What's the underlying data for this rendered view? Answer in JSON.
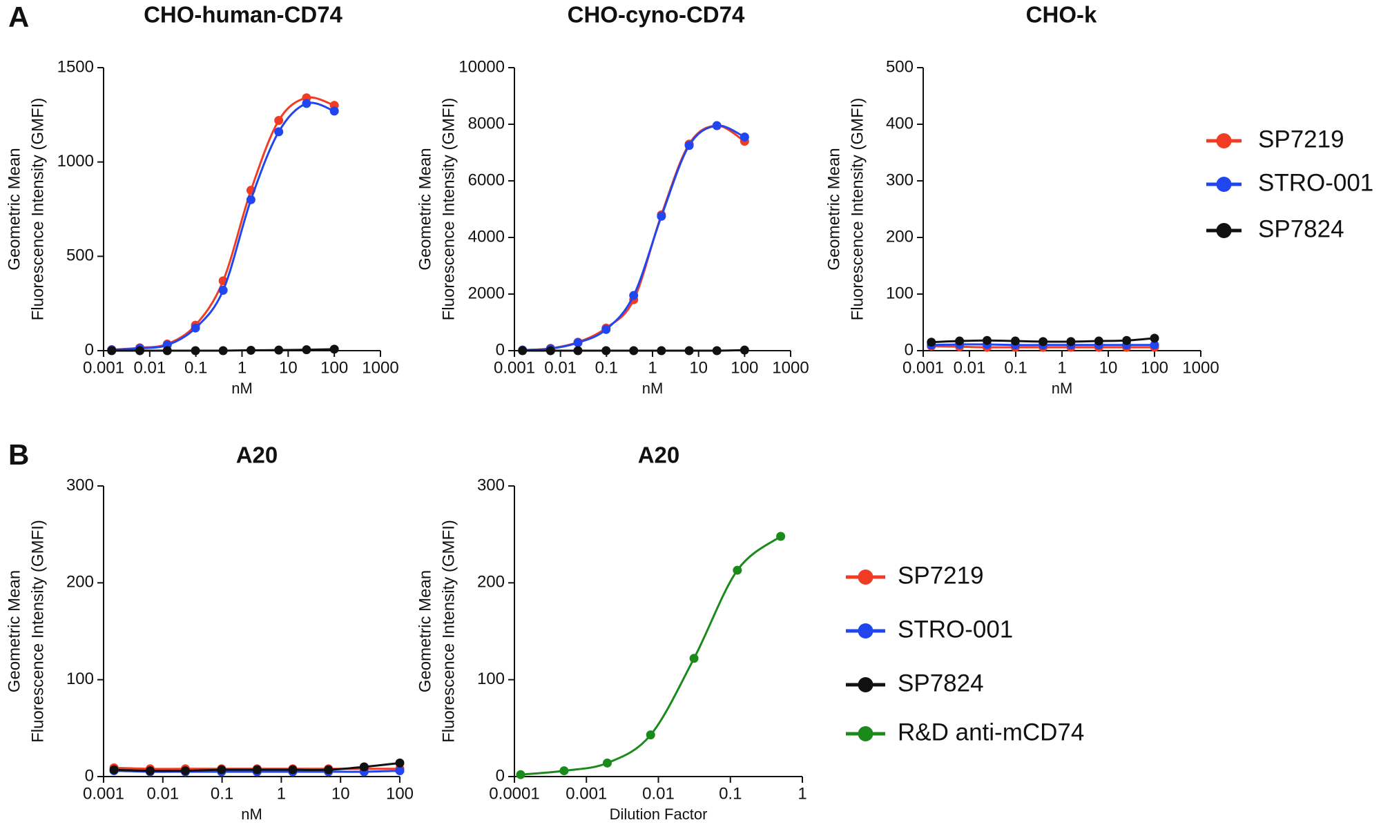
{
  "panel_labels": [
    "A",
    "B"
  ],
  "chart_data": [
    {
      "type": "line",
      "title": "CHO-human-CD74",
      "ylabel": [
        "Geometric Mean",
        "Fluorescence Intensity (GMFI)"
      ],
      "xlabel": "nM",
      "xscale": "log",
      "xlim": [
        0.001,
        1000
      ],
      "xticks": [
        0.001,
        0.01,
        0.1,
        1,
        10,
        100,
        1000
      ],
      "ylim": [
        0,
        1500
      ],
      "yticks": [
        0,
        500,
        1000,
        1500
      ],
      "x": [
        0.0015,
        0.0061,
        0.024,
        0.098,
        0.39,
        1.56,
        6.25,
        25,
        100
      ],
      "series": [
        {
          "name": "SP7219",
          "color": "#f03c24",
          "values": [
            5,
            15,
            35,
            135,
            370,
            850,
            1220,
            1340,
            1300
          ]
        },
        {
          "name": "STRO-001",
          "color": "#2146f0",
          "values": [
            5,
            12,
            30,
            120,
            320,
            800,
            1160,
            1310,
            1270
          ]
        },
        {
          "name": "SP7824",
          "color": "#111111",
          "values": [
            0,
            0,
            0,
            0,
            0,
            2,
            3,
            5,
            8
          ]
        }
      ]
    },
    {
      "type": "line",
      "title": "CHO-cyno-CD74",
      "ylabel": [
        "Geometric Mean",
        "Fluorescence Intensity (GMFI)"
      ],
      "xlabel": "nM",
      "xscale": "log",
      "xlim": [
        0.001,
        1000
      ],
      "xticks": [
        0.001,
        0.01,
        0.1,
        1,
        10,
        100,
        1000
      ],
      "ylim": [
        0,
        10000
      ],
      "yticks": [
        0,
        2000,
        4000,
        6000,
        8000,
        10000
      ],
      "x": [
        0.0015,
        0.0061,
        0.024,
        0.098,
        0.39,
        1.56,
        6.25,
        25,
        100
      ],
      "series": [
        {
          "name": "SP7219",
          "color": "#f03c24",
          "values": [
            20,
            80,
            300,
            800,
            1800,
            4800,
            7300,
            7950,
            7400
          ]
        },
        {
          "name": "STRO-001",
          "color": "#2146f0",
          "values": [
            20,
            70,
            280,
            750,
            1950,
            4750,
            7250,
            7950,
            7550
          ]
        },
        {
          "name": "SP7824",
          "color": "#111111",
          "values": [
            0,
            0,
            0,
            0,
            0,
            0,
            0,
            0,
            20
          ]
        }
      ]
    },
    {
      "type": "line",
      "title": "CHO-k",
      "ylabel": [
        "Geometric Mean",
        "Fluorescence Intensity (GMFI)"
      ],
      "xlabel": "nM",
      "xscale": "log",
      "xlim": [
        0.001,
        1000
      ],
      "xticks": [
        0.001,
        0.01,
        0.1,
        1,
        10,
        100,
        1000
      ],
      "ylim": [
        0,
        500
      ],
      "yticks": [
        0,
        100,
        200,
        300,
        400,
        500
      ],
      "x": [
        0.0015,
        0.0061,
        0.024,
        0.098,
        0.39,
        1.56,
        6.25,
        25,
        100
      ],
      "series": [
        {
          "name": "SP7219",
          "color": "#f03c24",
          "values": [
            8,
            7,
            6,
            6,
            6,
            6,
            6,
            6,
            6
          ]
        },
        {
          "name": "STRO-001",
          "color": "#2146f0",
          "values": [
            10,
            11,
            11,
            10,
            10,
            10,
            10,
            10,
            10
          ]
        },
        {
          "name": "SP7824",
          "color": "#111111",
          "values": [
            15,
            17,
            18,
            17,
            16,
            16,
            17,
            18,
            22
          ]
        }
      ]
    },
    {
      "type": "line",
      "title": "A20",
      "ylabel": [
        "Geometric Mean",
        "Fluorescence Intensity (GMFI)"
      ],
      "xlabel": "nM",
      "xscale": "log",
      "xlim": [
        0.001,
        100
      ],
      "xticks": [
        0.001,
        0.01,
        0.1,
        1,
        10,
        100
      ],
      "ylim": [
        0,
        300
      ],
      "yticks": [
        0,
        100,
        200,
        300
      ],
      "x": [
        0.0015,
        0.0061,
        0.024,
        0.098,
        0.39,
        1.56,
        6.25,
        25,
        100
      ],
      "series": [
        {
          "name": "SP7219",
          "color": "#f03c24",
          "values": [
            9,
            8,
            8,
            8,
            8,
            8,
            8,
            8,
            8
          ]
        },
        {
          "name": "STRO-001",
          "color": "#2146f0",
          "values": [
            6,
            5,
            5,
            5,
            5,
            5,
            5,
            5,
            6
          ]
        },
        {
          "name": "SP7824",
          "color": "#111111",
          "values": [
            7,
            6,
            6,
            7,
            7,
            7,
            7,
            10,
            14
          ]
        }
      ]
    },
    {
      "type": "line",
      "title": "A20",
      "ylabel": [
        "Geometric Mean",
        "Fluorescence Intensity (GMFI)"
      ],
      "xlabel": "Dilution Factor",
      "xscale": "log",
      "xlim": [
        0.0001,
        1
      ],
      "xticks": [
        0.0001,
        0.001,
        0.01,
        0.1,
        1
      ],
      "ylim": [
        0,
        300
      ],
      "yticks": [
        0,
        100,
        200,
        300
      ],
      "x": [
        0.000122,
        0.00049,
        0.00195,
        0.0078,
        0.03125,
        0.125,
        0.5
      ],
      "series": [
        {
          "name": "R&D anti-mCD74",
          "color": "#1a8a1a",
          "values": [
            2,
            6,
            14,
            43,
            122,
            213,
            248
          ]
        }
      ]
    }
  ]
}
